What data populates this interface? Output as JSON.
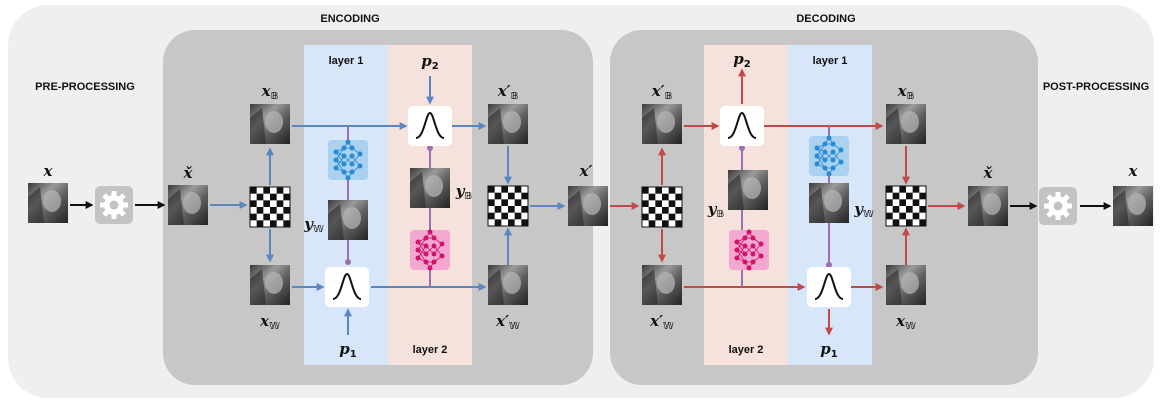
{
  "sections": {
    "encoding": "ENCODING",
    "decoding": "DECODING",
    "pre": "PRE-PROCESSING",
    "post": "POST-PROCESSING"
  },
  "layers": {
    "enc_1": "layer 1",
    "enc_2": "layer 2",
    "dec_2": "layer 2",
    "dec_1": "layer 1"
  },
  "symbols": {
    "input": {
      "base": "x"
    },
    "enc_check": {
      "base": "x̌"
    },
    "enc_xb": {
      "base": "x",
      "sub": "𝔹"
    },
    "enc_xw": {
      "base": "x",
      "sub": "𝕎"
    },
    "enc_yw": {
      "base": "y",
      "sub": "𝕎"
    },
    "enc_yb": {
      "base": "y",
      "sub": "𝔹"
    },
    "enc_p1": {
      "base": "p",
      "sub": "1"
    },
    "enc_p2": {
      "base": "p",
      "sub": "2"
    },
    "enc_xbp": {
      "base": "x′",
      "sub": "𝔹"
    },
    "enc_xwp": {
      "base": "x′",
      "sub": "𝕎"
    },
    "mid": {
      "base": "x′"
    },
    "dec_xbp": {
      "base": "x′",
      "sub": "𝔹"
    },
    "dec_xwp": {
      "base": "x′",
      "sub": "𝕎"
    },
    "dec_p2": {
      "base": "p",
      "sub": "2"
    },
    "dec_yb": {
      "base": "y",
      "sub": "𝔹"
    },
    "dec_yw": {
      "base": "y",
      "sub": "𝕎"
    },
    "dec_p1": {
      "base": "p",
      "sub": "1"
    },
    "dec_xb": {
      "base": "x",
      "sub": "𝔹"
    },
    "dec_xw": {
      "base": "x",
      "sub": "𝕎"
    },
    "dec_check": {
      "base": "x̌"
    },
    "output": {
      "base": "x"
    }
  }
}
